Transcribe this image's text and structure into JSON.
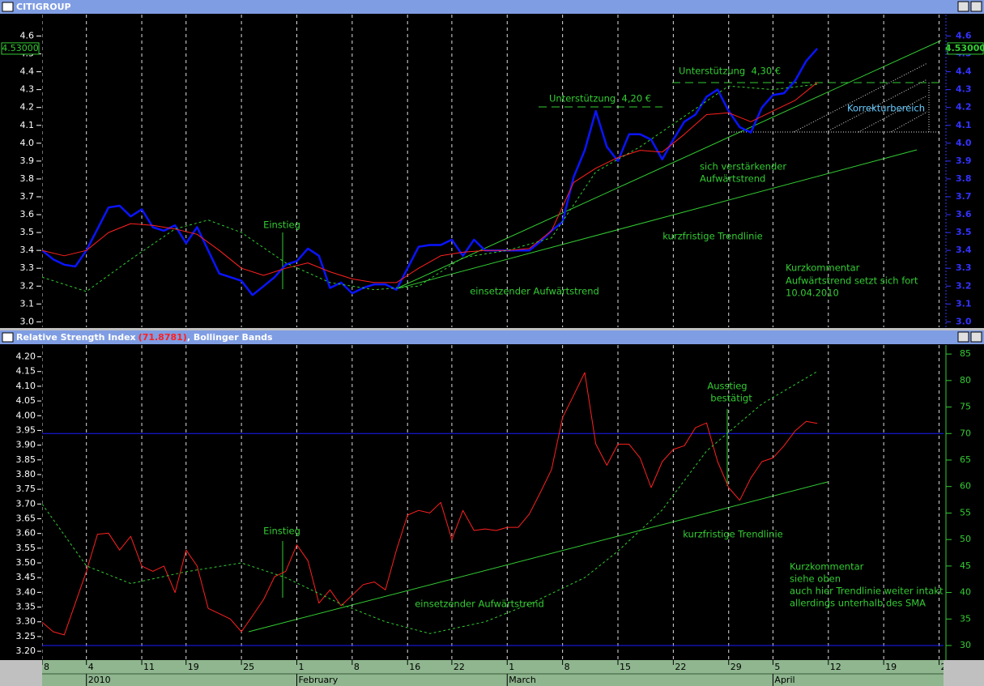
{
  "chart_data": [
    {
      "type": "line",
      "title": "CITIGROUP",
      "value_box": "4.53000",
      "x": [
        -4,
        -3,
        -2,
        -1,
        0,
        1,
        2,
        3,
        4,
        5,
        6,
        7,
        8,
        9,
        10,
        11,
        12,
        13,
        14,
        15,
        16,
        17,
        18,
        19,
        20,
        21,
        22,
        23,
        24,
        25,
        26,
        27,
        28,
        29,
        30,
        31,
        32,
        33,
        34,
        35,
        36,
        37,
        38,
        39,
        40,
        41,
        42,
        43,
        44,
        45,
        46,
        47,
        48,
        49,
        50,
        51,
        52,
        53,
        54,
        55,
        56,
        57,
        58,
        59,
        60,
        61,
        62,
        63,
        64,
        65,
        66
      ],
      "ylim": [
        2.97,
        4.72
      ],
      "yticks": [
        {
          "value": 3.0,
          "label": "3.0"
        },
        3.1,
        3.2,
        3.3,
        3.4,
        3.5,
        3.6,
        3.7,
        3.8,
        3.9,
        {
          "value": 4.0,
          "label": "4.0"
        },
        4.1,
        4.2,
        4.3,
        4.4,
        4.5,
        4.6
      ],
      "series": [
        {
          "color": "#0a14ff",
          "values": [
            3.4,
            3.35,
            3.32,
            3.31,
            3.4,
            3.52,
            3.64,
            3.65,
            3.59,
            3.63,
            3.53,
            3.51,
            3.54,
            3.44,
            3.53,
            3.4,
            3.27,
            3.25,
            3.23,
            3.15,
            3.2,
            3.25,
            3.32,
            3.34,
            3.41,
            3.37,
            3.19,
            3.22,
            3.16,
            3.19,
            3.21,
            3.21,
            3.18,
            3.3,
            3.42,
            3.43,
            3.43,
            3.46,
            3.37,
            3.46,
            3.4,
            3.4,
            3.4,
            3.4,
            3.4,
            3.45,
            3.51,
            3.56,
            3.81,
            3.96,
            4.18,
            3.98,
            3.9,
            4.05,
            4.05,
            4.02,
            3.91,
            4.02,
            4.12,
            4.16,
            4.26,
            4.3,
            4.18,
            4.09,
            4.06,
            4.2,
            4.27,
            4.28,
            4.35,
            4.46,
            4.53
          ]
        },
        {
          "color": "#ff2020",
          "x": [
            -4,
            -2,
            0,
            2,
            4,
            6,
            8,
            10,
            12,
            14,
            16,
            18,
            20,
            22,
            24,
            26,
            28,
            30,
            32,
            34,
            36,
            38,
            40,
            42,
            44,
            46,
            48,
            50,
            52,
            54,
            56,
            58,
            60,
            62,
            64,
            66
          ],
          "values": [
            3.4,
            3.37,
            3.4,
            3.5,
            3.55,
            3.54,
            3.52,
            3.49,
            3.4,
            3.3,
            3.26,
            3.3,
            3.33,
            3.28,
            3.24,
            3.22,
            3.22,
            3.3,
            3.37,
            3.39,
            3.4,
            3.4,
            3.41,
            3.51,
            3.78,
            3.86,
            3.92,
            3.96,
            3.95,
            4.05,
            4.16,
            4.17,
            4.12,
            4.18,
            4.24,
            4.34
          ]
        },
        {
          "color": "#33cc33",
          "dashed": true,
          "x": [
            -4,
            0,
            4,
            8,
            11,
            14,
            18,
            22,
            26,
            30,
            34,
            38,
            42,
            46,
            50,
            54,
            58,
            62,
            66
          ],
          "values": [
            3.25,
            3.17,
            3.35,
            3.52,
            3.57,
            3.5,
            3.33,
            3.22,
            3.18,
            3.2,
            3.36,
            3.4,
            3.47,
            3.84,
            3.98,
            4.15,
            4.32,
            4.3,
            4.33
          ]
        }
      ],
      "annotations": [
        "Einstieg",
        "einsetzender Aufwärtstrend",
        "kurzfristige Trendlinie",
        "sich verstärkender",
        "Aufwärtstrend",
        "Unterstützung  4,20 €",
        "Unterstützung  4,30 €",
        "Korrekturbereich",
        "Kurzkommentar",
        "Aufwärtstrend setzt sich fort",
        "10.04.2010"
      ]
    },
    {
      "type": "line",
      "title": "Relative Strength Index",
      "title_value": "(71.8781)",
      "title_suffix": ", Bollinger Bands",
      "x": [
        -4,
        -3,
        -2,
        -1,
        0,
        1,
        2,
        3,
        4,
        5,
        6,
        7,
        8,
        9,
        10,
        11,
        12,
        13,
        14,
        15,
        16,
        17,
        18,
        19,
        20,
        21,
        22,
        23,
        24,
        25,
        26,
        27,
        28,
        29,
        30,
        31,
        32,
        33,
        34,
        35,
        36,
        37,
        38,
        39,
        40,
        41,
        42,
        43,
        44,
        45,
        46,
        47,
        48,
        49,
        50,
        51,
        52,
        53,
        54,
        55,
        56,
        57,
        58,
        59,
        60,
        61,
        62,
        63,
        64,
        65,
        66
      ],
      "xlim": [
        -4,
        77.4
      ],
      "xticks": [
        {
          "value": -4,
          "label": "8"
        },
        {
          "value": 0,
          "label": "4"
        },
        {
          "value": 5,
          "label": "11"
        },
        {
          "value": 9,
          "label": "19"
        },
        {
          "value": 14,
          "label": "25"
        },
        {
          "value": 19,
          "label": "1"
        },
        {
          "value": 24,
          "label": "8"
        },
        {
          "value": 29,
          "label": "16"
        },
        {
          "value": 33,
          "label": "22"
        },
        {
          "value": 38,
          "label": "1"
        },
        {
          "value": 43,
          "label": "8"
        },
        {
          "value": 48,
          "label": "15"
        },
        {
          "value": 53,
          "label": "22"
        },
        {
          "value": 58,
          "label": "29"
        },
        {
          "value": 62,
          "label": "5"
        },
        {
          "value": 67,
          "label": "12"
        },
        {
          "value": 72,
          "label": "19"
        },
        {
          "value": 77,
          "label": "2"
        }
      ],
      "month_labels": [
        {
          "value": 0,
          "label": "2010"
        },
        {
          "value": 19,
          "label": "February"
        },
        {
          "value": 38,
          "label": "March"
        },
        {
          "value": 62,
          "label": "April"
        }
      ],
      "ylim": [
        3.17,
        4.24
      ],
      "yticks": [
        {
          "value": 3.2,
          "label": "3.20"
        },
        3.25,
        {
          "value": 3.3,
          "label": "3.30"
        },
        3.35,
        {
          "value": 3.4,
          "label": "3.40"
        },
        3.45,
        {
          "value": 3.5,
          "label": "3.50"
        },
        3.55,
        {
          "value": 3.6,
          "label": "3.60"
        },
        3.65,
        {
          "value": 3.7,
          "label": "3.70"
        },
        3.75,
        {
          "value": 3.8,
          "label": "3.80"
        },
        3.85,
        {
          "value": 3.9,
          "label": "3.90"
        },
        3.95,
        {
          "value": 4.0,
          "label": "4.00"
        },
        4.05,
        {
          "value": 4.1,
          "label": "4.10"
        },
        4.15,
        {
          "value": 4.2,
          "label": "4.20"
        }
      ],
      "y2lim": [
        27.25,
        86.7
      ],
      "y2ticks": [
        30,
        35,
        40,
        45,
        50,
        55,
        60,
        65,
        70,
        75,
        80,
        85
      ],
      "hlines": [
        70,
        30
      ],
      "series": [
        {
          "color": "#ff2020",
          "axis": "y2",
          "values": [
            34.4,
            32.6,
            32.0,
            38,
            44,
            51,
            51.2,
            48,
            50.6,
            45,
            44,
            45,
            40,
            48,
            45,
            37,
            36,
            35,
            32.6,
            35.6,
            38.7,
            43,
            44,
            49,
            46,
            38,
            40.5,
            37.5,
            39.5,
            41.5,
            42,
            40.5,
            48,
            54.6,
            55.5,
            55,
            57,
            50,
            55.5,
            51.7,
            52,
            51.7,
            52.3,
            52.3,
            54.8,
            58.9,
            63.2,
            73,
            77.2,
            81.5,
            68,
            64,
            68,
            68,
            65.4,
            59.8,
            64.7,
            67,
            67.7,
            71.1,
            72,
            64.7,
            59.8,
            57.4,
            61.6,
            64.7,
            65.4,
            67.7,
            70.5,
            72.3,
            71.9
          ]
        },
        {
          "color": "#33cc33",
          "dashed": true,
          "x": [
            -4,
            0,
            4,
            9,
            14,
            18,
            23,
            27,
            31,
            36,
            40,
            45,
            48,
            52,
            56,
            61,
            66
          ],
          "values": [
            3.7,
            3.49,
            3.43,
            3.47,
            3.5,
            3.45,
            3.36,
            3.3,
            3.26,
            3.3,
            3.36,
            3.45,
            3.54,
            3.68,
            3.88,
            4.04,
            4.15
          ]
        }
      ],
      "annotations": [
        "Einstieg",
        "einsetzender Aufwärtstrend",
        "kurzfristige Trendlinie",
        "Ausstieg",
        "bestätigt",
        "Kurzkommentar",
        "siehe oben",
        "auch hier Trendlinie weiter intakt",
        "allerdings unterhalb des SMA"
      ]
    }
  ]
}
